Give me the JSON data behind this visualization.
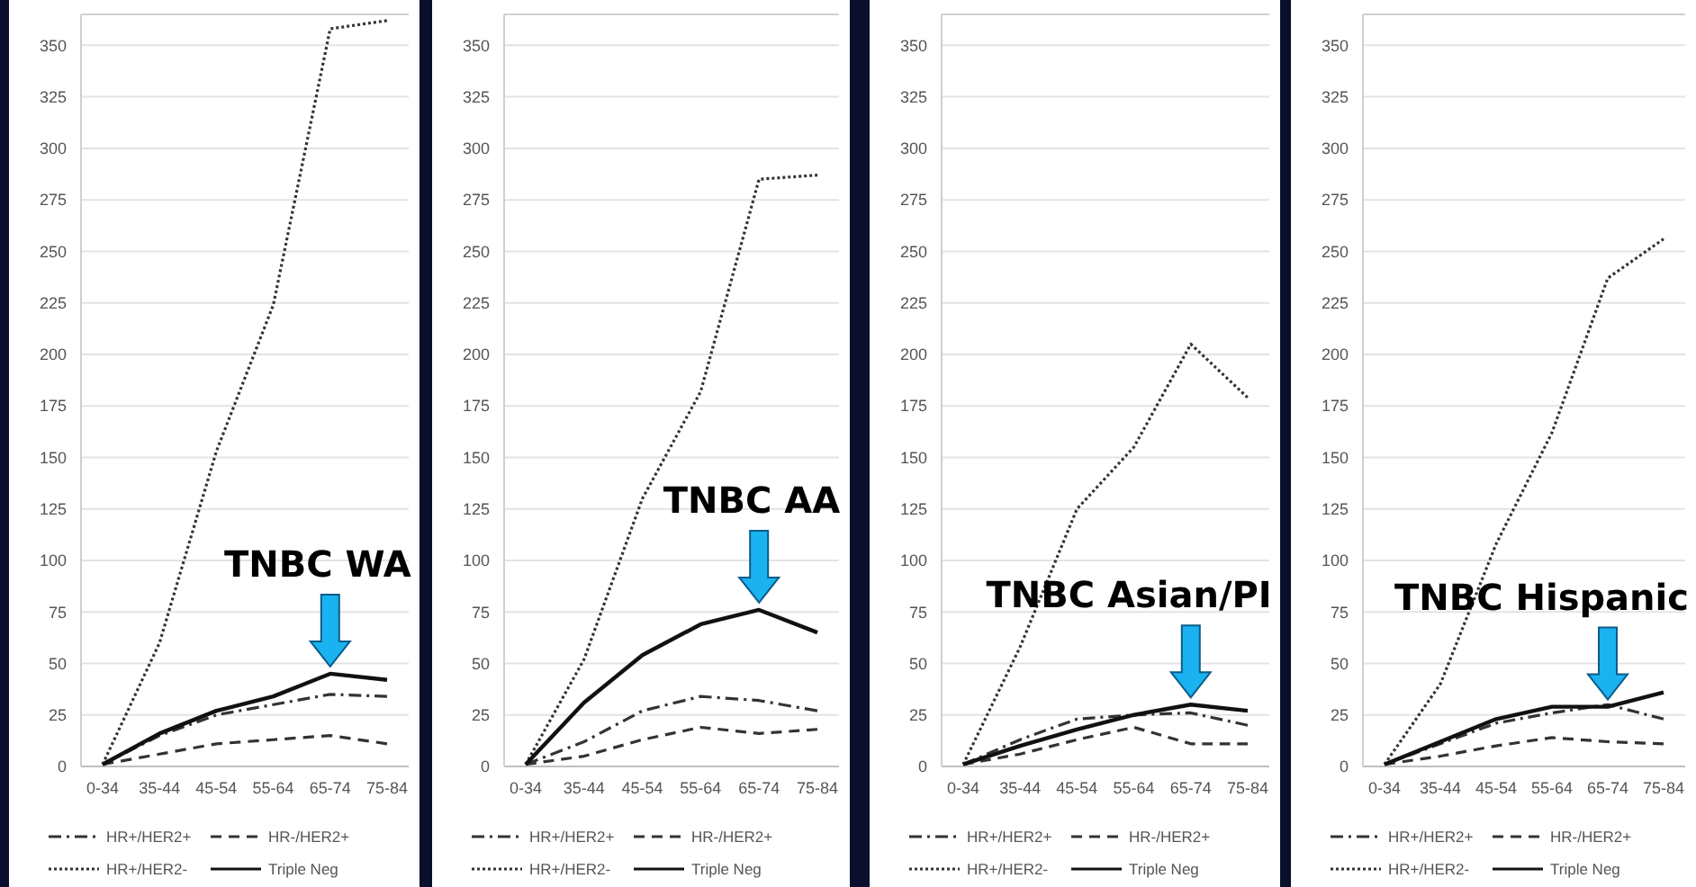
{
  "chart_data": [
    {
      "type": "line",
      "categories": [
        "0-34",
        "35-44",
        "45-54",
        "55-64",
        "65-74",
        "75-84"
      ],
      "ylim": [
        0,
        365
      ],
      "yticks": [
        0,
        25,
        50,
        75,
        100,
        125,
        150,
        175,
        200,
        225,
        250,
        275,
        300,
        325,
        350
      ],
      "grid": "y",
      "legend": "bottom",
      "annotations": [
        {
          "text": "TNBC WA",
          "x": "65-74",
          "y": 45
        }
      ],
      "series": [
        {
          "name": "HR+/HER2+",
          "color": "#333333",
          "line_style": "dashdot",
          "values": [
            1,
            15,
            25,
            30,
            35,
            34
          ]
        },
        {
          "name": "HR-/HER2+",
          "color": "#333333",
          "line_style": "dashed",
          "values": [
            1,
            6,
            11,
            13,
            15,
            11
          ]
        },
        {
          "name": "HR+/HER2-",
          "color": "#333333",
          "line_style": "dotted",
          "values": [
            1,
            60,
            153,
            224,
            358,
            362
          ]
        },
        {
          "name": "Triple Neg",
          "color": "#111111",
          "line_style": "solid",
          "values": [
            1,
            16,
            27,
            34,
            45,
            42
          ]
        }
      ]
    },
    {
      "type": "line",
      "categories": [
        "0-34",
        "35-44",
        "45-54",
        "55-64",
        "65-74",
        "75-84"
      ],
      "ylim": [
        0,
        365
      ],
      "yticks": [
        0,
        25,
        50,
        75,
        100,
        125,
        150,
        175,
        200,
        225,
        250,
        275,
        300,
        325,
        350
      ],
      "grid": "y",
      "legend": "bottom",
      "annotations": [
        {
          "text": "TNBC AA",
          "x": "65-74",
          "y": 76
        }
      ],
      "series": [
        {
          "name": "HR+/HER2+",
          "color": "#333333",
          "line_style": "dashdot",
          "values": [
            1,
            12,
            27,
            34,
            32,
            27
          ]
        },
        {
          "name": "HR-/HER2+",
          "color": "#333333",
          "line_style": "dashed",
          "values": [
            1,
            5,
            13,
            19,
            16,
            18
          ]
        },
        {
          "name": "HR+/HER2-",
          "color": "#333333",
          "line_style": "dotted",
          "values": [
            1,
            52,
            130,
            182,
            285,
            287
          ]
        },
        {
          "name": "Triple Neg",
          "color": "#111111",
          "line_style": "solid",
          "values": [
            1,
            31,
            54,
            69,
            76,
            65
          ]
        }
      ]
    },
    {
      "type": "line",
      "categories": [
        "0-34",
        "35-44",
        "45-54",
        "55-64",
        "65-74",
        "75-84"
      ],
      "ylim": [
        0,
        365
      ],
      "yticks": [
        0,
        25,
        50,
        75,
        100,
        125,
        150,
        175,
        200,
        225,
        250,
        275,
        300,
        325,
        350
      ],
      "grid": "y",
      "legend": "bottom",
      "annotations": [
        {
          "text": "TNBC Asian/PI",
          "x": "65-74",
          "y": 30
        }
      ],
      "series": [
        {
          "name": "HR+/HER2+",
          "color": "#333333",
          "line_style": "dashdot",
          "values": [
            1,
            13,
            23,
            25,
            26,
            20
          ]
        },
        {
          "name": "HR-/HER2+",
          "color": "#333333",
          "line_style": "dashed",
          "values": [
            1,
            6,
            13,
            19,
            11,
            11
          ]
        },
        {
          "name": "HR+/HER2-",
          "color": "#333333",
          "line_style": "dotted",
          "values": [
            1,
            58,
            125,
            155,
            205,
            179
          ]
        },
        {
          "name": "Triple Neg",
          "color": "#111111",
          "line_style": "solid",
          "values": [
            1,
            10,
            18,
            25,
            30,
            27
          ]
        }
      ]
    },
    {
      "type": "line",
      "categories": [
        "0-34",
        "35-44",
        "45-54",
        "55-64",
        "65-74",
        "75-84"
      ],
      "ylim": [
        0,
        365
      ],
      "yticks": [
        0,
        25,
        50,
        75,
        100,
        125,
        150,
        175,
        200,
        225,
        250,
        275,
        300,
        325,
        350
      ],
      "grid": "y",
      "legend": "bottom",
      "annotations": [
        {
          "text": "TNBC Hispanic",
          "x": "65-74",
          "y": 29
        }
      ],
      "series": [
        {
          "name": "HR+/HER2+",
          "color": "#333333",
          "line_style": "dashdot",
          "values": [
            1,
            11,
            21,
            26,
            30,
            23
          ]
        },
        {
          "name": "HR-/HER2+",
          "color": "#333333",
          "line_style": "dashed",
          "values": [
            1,
            5,
            10,
            14,
            12,
            11
          ]
        },
        {
          "name": "HR+/HER2-",
          "color": "#333333",
          "line_style": "dotted",
          "values": [
            1,
            40,
            108,
            162,
            237,
            256
          ]
        },
        {
          "name": "Triple Neg",
          "color": "#111111",
          "line_style": "solid",
          "values": [
            1,
            12,
            23,
            29,
            29,
            36
          ]
        }
      ]
    }
  ]
}
